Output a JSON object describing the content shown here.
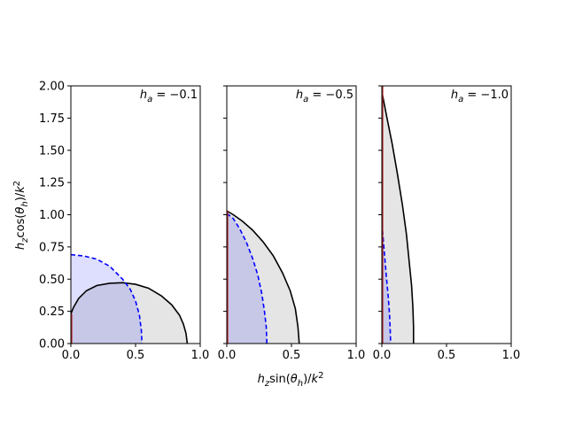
{
  "chart_data": {
    "type": "area",
    "xlabel": "h_z sin(θ_h)/k²",
    "ylabel": "h_z cos(θ_h)/k²",
    "xlim": [
      0,
      1.0
    ],
    "ylim": [
      0,
      2.0
    ],
    "x_ticks": [
      "0.0",
      "0.5",
      "1.0"
    ],
    "y_ticks": [
      "0.00",
      "0.25",
      "0.50",
      "0.75",
      "1.00",
      "1.25",
      "1.50",
      "1.75",
      "2.00"
    ],
    "colors": {
      "solid": "#000000",
      "dashed": "#0000ff",
      "solid_fill": "#e5e5e5",
      "dashed_fill": "#c8c8f0",
      "vertical_line": "#b22222"
    },
    "panels": [
      {
        "label_var": "h",
        "label_sub": "a",
        "label_rhs": " = −0.1",
        "solid_curve": [
          [
            0,
            0.23
          ],
          [
            0.02,
            0.28
          ],
          [
            0.06,
            0.35
          ],
          [
            0.12,
            0.41
          ],
          [
            0.2,
            0.45
          ],
          [
            0.3,
            0.468
          ],
          [
            0.4,
            0.472
          ],
          [
            0.5,
            0.46
          ],
          [
            0.6,
            0.43
          ],
          [
            0.7,
            0.37
          ],
          [
            0.78,
            0.3
          ],
          [
            0.84,
            0.22
          ],
          [
            0.87,
            0.15
          ],
          [
            0.89,
            0.08
          ],
          [
            0.9,
            0.0
          ]
        ],
        "dashed_curve": [
          [
            0,
            0.69
          ],
          [
            0.1,
            0.68
          ],
          [
            0.2,
            0.655
          ],
          [
            0.3,
            0.6
          ],
          [
            0.4,
            0.5
          ],
          [
            0.46,
            0.42
          ],
          [
            0.5,
            0.33
          ],
          [
            0.53,
            0.22
          ],
          [
            0.545,
            0.1
          ],
          [
            0.55,
            0.0
          ]
        ],
        "vertical_line_top": 0.23
      },
      {
        "label_var": "h",
        "label_sub": "a",
        "label_rhs": " = −0.5",
        "solid_curve": [
          [
            0,
            1.03
          ],
          [
            0.05,
            1.0
          ],
          [
            0.12,
            0.95
          ],
          [
            0.2,
            0.88
          ],
          [
            0.28,
            0.79
          ],
          [
            0.36,
            0.68
          ],
          [
            0.43,
            0.55
          ],
          [
            0.49,
            0.41
          ],
          [
            0.53,
            0.27
          ],
          [
            0.55,
            0.13
          ],
          [
            0.56,
            0.0
          ]
        ],
        "dashed_curve": [
          [
            0,
            1.01
          ],
          [
            0.05,
            0.97
          ],
          [
            0.1,
            0.89
          ],
          [
            0.15,
            0.79
          ],
          [
            0.2,
            0.66
          ],
          [
            0.24,
            0.53
          ],
          [
            0.27,
            0.39
          ],
          [
            0.29,
            0.26
          ],
          [
            0.305,
            0.13
          ],
          [
            0.31,
            0.0
          ]
        ],
        "vertical_line_top": 1.03
      },
      {
        "label_var": "h",
        "label_sub": "a",
        "label_rhs": " = −1.0",
        "solid_curve": [
          [
            0,
            2.0
          ],
          [
            0.005,
            1.93
          ],
          [
            0.04,
            1.75
          ],
          [
            0.08,
            1.55
          ],
          [
            0.12,
            1.32
          ],
          [
            0.16,
            1.07
          ],
          [
            0.19,
            0.85
          ],
          [
            0.21,
            0.65
          ],
          [
            0.23,
            0.45
          ],
          [
            0.24,
            0.28
          ],
          [
            0.245,
            0.13
          ],
          [
            0.245,
            0.0
          ]
        ],
        "dashed_curve": [
          [
            0.005,
            0.88
          ],
          [
            0.02,
            0.7
          ],
          [
            0.035,
            0.52
          ],
          [
            0.05,
            0.36
          ],
          [
            0.06,
            0.22
          ],
          [
            0.065,
            0.1
          ],
          [
            0.068,
            0.0
          ]
        ],
        "vertical_line_top": 2.0
      }
    ]
  }
}
